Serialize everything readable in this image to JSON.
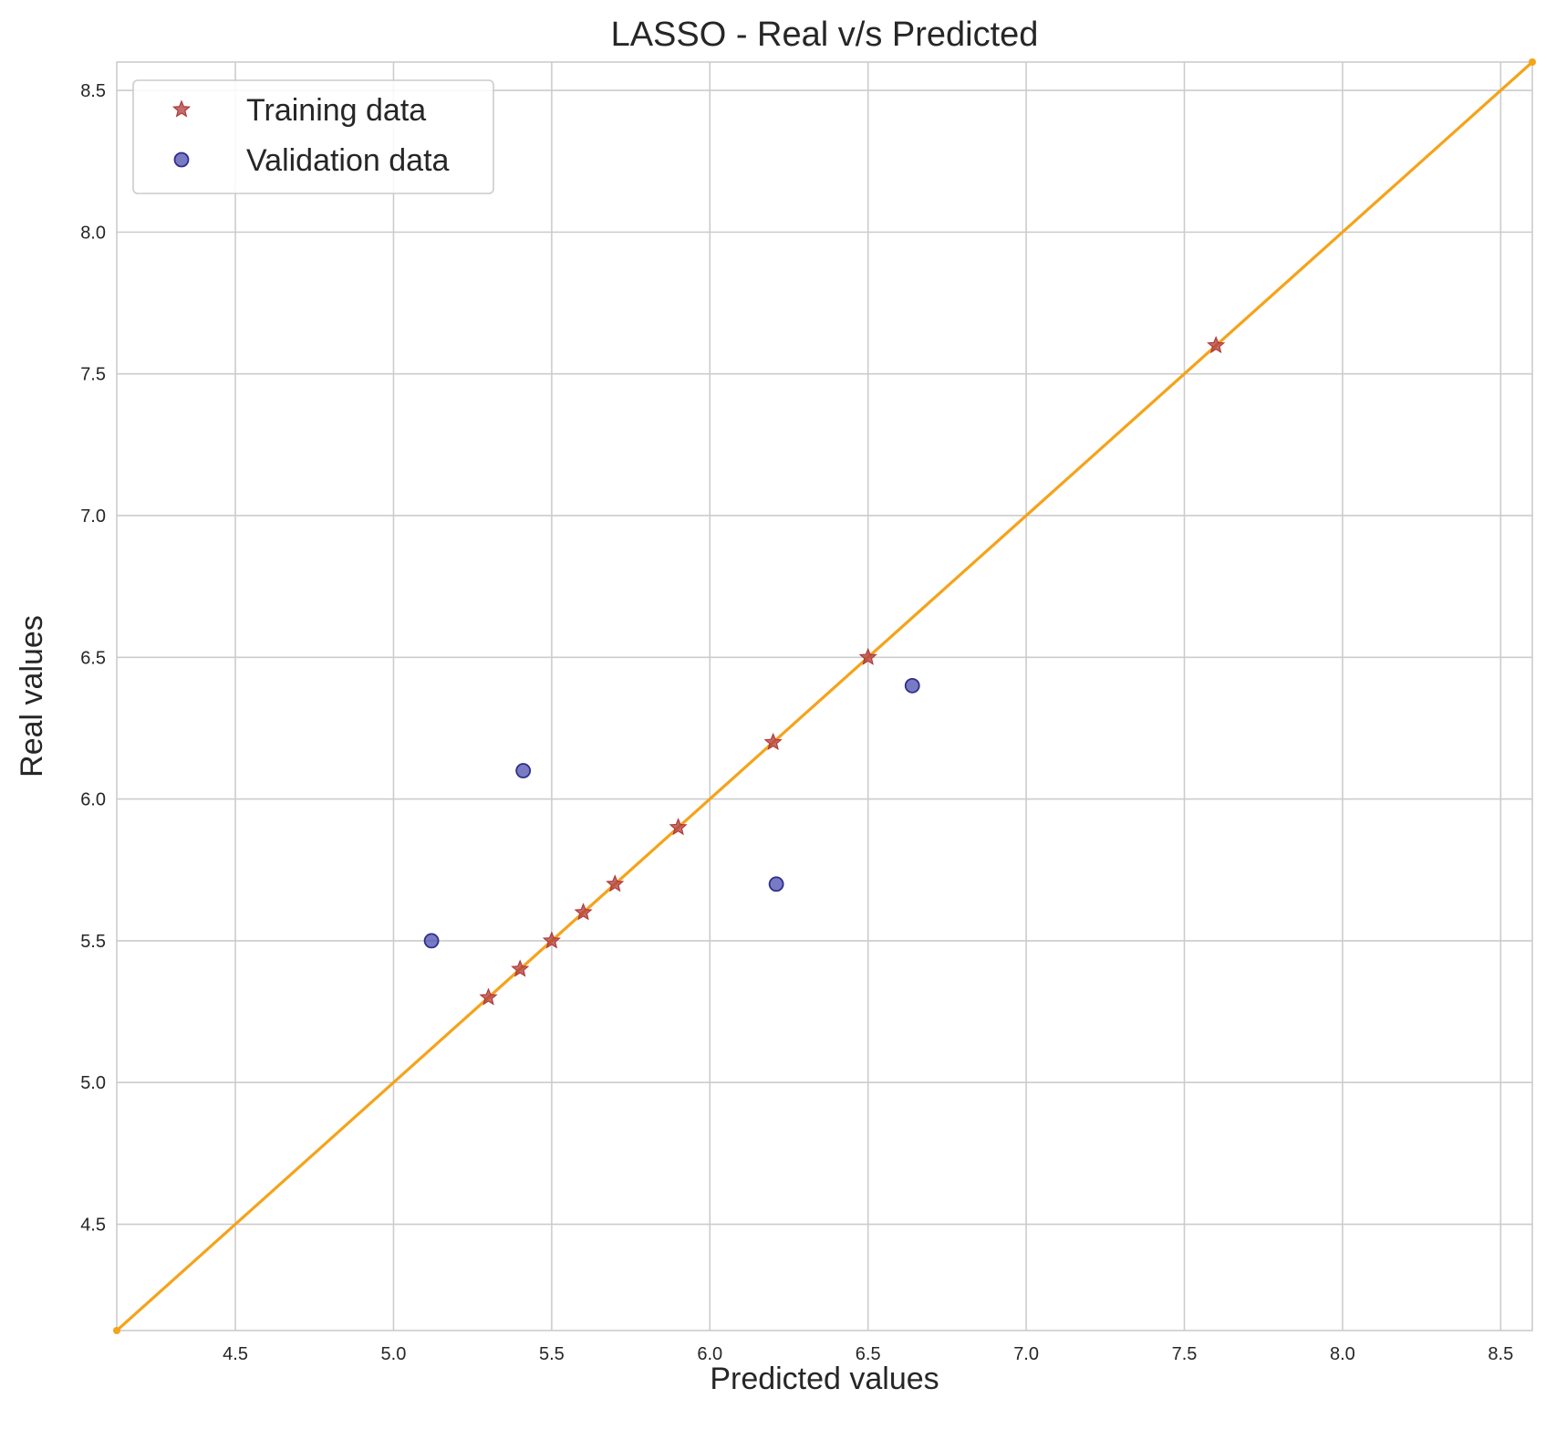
{
  "chart_data": {
    "type": "scatter",
    "title": "LASSO - Real v/s Predicted",
    "xlabel": "Predicted values",
    "ylabel": "Real values",
    "xlim": [
      4.125,
      8.6
    ],
    "ylim": [
      4.125,
      8.6
    ],
    "xticks": [
      4.5,
      5.0,
      5.5,
      6.0,
      6.5,
      7.0,
      7.5,
      8.0,
      8.5
    ],
    "yticks": [
      4.5,
      5.0,
      5.5,
      6.0,
      6.5,
      7.0,
      7.5,
      8.0,
      8.5
    ],
    "tick_labels": [
      "4.5",
      "5.0",
      "5.5",
      "6.0",
      "6.5",
      "7.0",
      "7.5",
      "8.0",
      "8.5"
    ],
    "grid": true,
    "legend_position": "top-left",
    "series": [
      {
        "name": "Training data",
        "marker": "star",
        "color": "#b03a3a",
        "points": [
          [
            5.3,
            5.3
          ],
          [
            5.4,
            5.4
          ],
          [
            5.5,
            5.5
          ],
          [
            5.6,
            5.6
          ],
          [
            5.7,
            5.7
          ],
          [
            5.9,
            5.9
          ],
          [
            6.2,
            6.2
          ],
          [
            6.5,
            6.5
          ],
          [
            7.6,
            7.6
          ]
        ]
      },
      {
        "name": "Validation data",
        "marker": "circle",
        "color": "#4b4fb0",
        "points": [
          [
            5.12,
            5.5
          ],
          [
            5.41,
            6.1
          ],
          [
            6.21,
            5.7
          ],
          [
            6.64,
            6.4
          ]
        ]
      }
    ],
    "reference_line": {
      "type": "y=x",
      "color": "#f5a31a",
      "points": [
        [
          4.125,
          4.125
        ],
        [
          8.6,
          8.6
        ]
      ]
    }
  }
}
